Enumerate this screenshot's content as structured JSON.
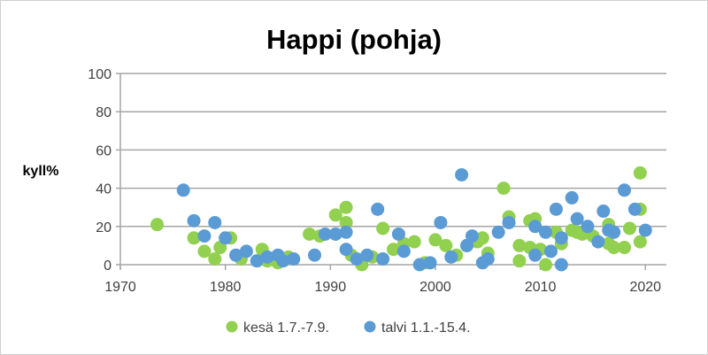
{
  "chart_data": {
    "type": "scatter",
    "title": "Happi (pohja)",
    "xlabel": "",
    "ylabel": "kyll%",
    "xlim": [
      1970,
      2022
    ],
    "ylim": [
      0,
      100
    ],
    "xticks": [
      1970,
      1980,
      1990,
      2000,
      2010,
      2020
    ],
    "yticks": [
      0,
      20,
      40,
      60,
      80,
      100
    ],
    "grid": "horizontal",
    "legend": "bottom",
    "series": [
      {
        "name": "kesä 1.7.-7.9.",
        "color": "#92d050",
        "points": [
          [
            1973.5,
            21
          ],
          [
            1977,
            14
          ],
          [
            1978,
            7
          ],
          [
            1979,
            3
          ],
          [
            1979.5,
            9
          ],
          [
            1980.5,
            14
          ],
          [
            1981.5,
            3
          ],
          [
            1983.5,
            8
          ],
          [
            1984,
            2
          ],
          [
            1985,
            1
          ],
          [
            1986,
            4
          ],
          [
            1988,
            16
          ],
          [
            1989,
            15
          ],
          [
            1990.5,
            26
          ],
          [
            1991.5,
            30
          ],
          [
            1991.5,
            22
          ],
          [
            1992,
            5
          ],
          [
            1993,
            0
          ],
          [
            1994,
            4
          ],
          [
            1995,
            19
          ],
          [
            1996,
            8
          ],
          [
            1997,
            11
          ],
          [
            1998,
            12
          ],
          [
            1999,
            1
          ],
          [
            2000,
            13
          ],
          [
            2001,
            10
          ],
          [
            2002,
            5
          ],
          [
            2003,
            10
          ],
          [
            2004,
            12
          ],
          [
            2004.5,
            14
          ],
          [
            2005,
            6
          ],
          [
            2006.5,
            40
          ],
          [
            2007,
            25
          ],
          [
            2008,
            2
          ],
          [
            2008,
            10
          ],
          [
            2009,
            23
          ],
          [
            2009,
            9
          ],
          [
            2009.5,
            24
          ],
          [
            2010,
            8
          ],
          [
            2010.5,
            0
          ],
          [
            2011.5,
            17
          ],
          [
            2012,
            11
          ],
          [
            2013,
            18
          ],
          [
            2013.5,
            17
          ],
          [
            2014,
            16
          ],
          [
            2015,
            15
          ],
          [
            2016.5,
            21
          ],
          [
            2016.5,
            11
          ],
          [
            2017,
            9
          ],
          [
            2018,
            9
          ],
          [
            2018.5,
            19
          ],
          [
            2019.5,
            48
          ],
          [
            2019.5,
            29
          ],
          [
            2019.5,
            12
          ]
        ]
      },
      {
        "name": "talvi 1.1.-15.4.",
        "color": "#5b9bd5",
        "points": [
          [
            1976,
            39
          ],
          [
            1977,
            23
          ],
          [
            1978,
            15
          ],
          [
            1979,
            22
          ],
          [
            1980,
            14
          ],
          [
            1981,
            5
          ],
          [
            1982,
            7
          ],
          [
            1983,
            2
          ],
          [
            1984,
            4
          ],
          [
            1985,
            5
          ],
          [
            1985.5,
            2
          ],
          [
            1986.5,
            3
          ],
          [
            1988.5,
            5
          ],
          [
            1989.5,
            16
          ],
          [
            1990.5,
            16
          ],
          [
            1991.5,
            17
          ],
          [
            1991.5,
            8
          ],
          [
            1992.5,
            3
          ],
          [
            1993.5,
            5
          ],
          [
            1994.5,
            29
          ],
          [
            1995,
            3
          ],
          [
            1996.5,
            16
          ],
          [
            1997,
            7
          ],
          [
            1998.5,
            0
          ],
          [
            1999.5,
            1
          ],
          [
            2000.5,
            22
          ],
          [
            2001.5,
            4
          ],
          [
            2002.5,
            47
          ],
          [
            2003,
            10
          ],
          [
            2003.5,
            15
          ],
          [
            2004.5,
            1
          ],
          [
            2005,
            3
          ],
          [
            2006,
            17
          ],
          [
            2007,
            22
          ],
          [
            2009.5,
            20
          ],
          [
            2009.5,
            5
          ],
          [
            2010.5,
            17
          ],
          [
            2011,
            7
          ],
          [
            2011.5,
            29
          ],
          [
            2012,
            14
          ],
          [
            2012,
            0
          ],
          [
            2013,
            35
          ],
          [
            2013.5,
            24
          ],
          [
            2014.5,
            20
          ],
          [
            2015.5,
            12
          ],
          [
            2016,
            28
          ],
          [
            2016.5,
            18
          ],
          [
            2017,
            17
          ],
          [
            2018,
            39
          ],
          [
            2019,
            29
          ],
          [
            2020,
            18
          ]
        ]
      }
    ]
  }
}
